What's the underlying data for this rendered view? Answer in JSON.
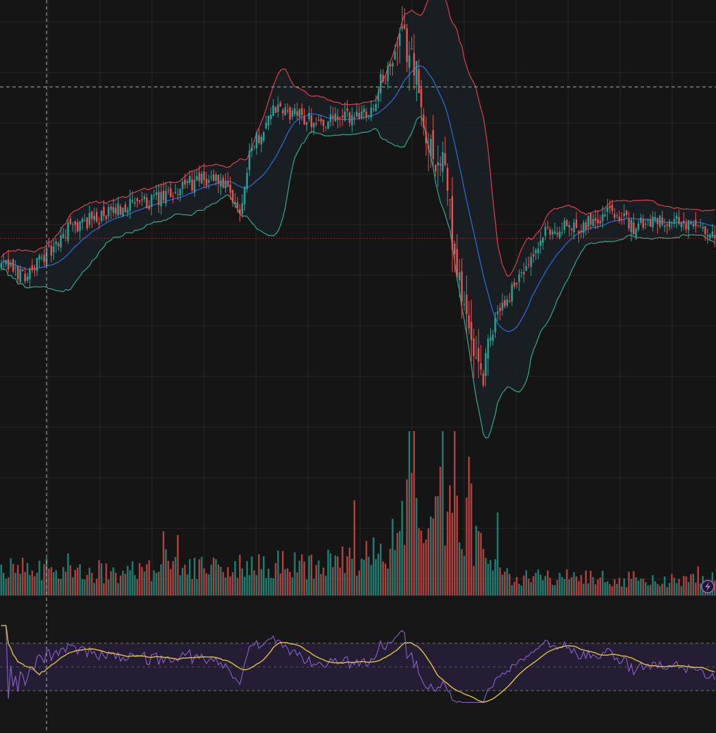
{
  "theme": {
    "background": "#151515",
    "grid": "#262626",
    "up": "#26a69a",
    "down": "#ef5350",
    "bb_upper": "#e0414f",
    "bb_lower": "#2fae8f",
    "bb_basis": "#2f6fe0",
    "bb_fill": "#1a2026",
    "volume_up": "#1f7f73",
    "volume_down": "#b3413f",
    "rsi_line": "#8a63d2",
    "rsi_ma": "#e3c542",
    "rsi_band": "#251d33",
    "crosshair": "#b0b0b0",
    "price_line": "#c94444",
    "icon": "#9c6ad6"
  },
  "chart_data": [
    {
      "type": "candlestick",
      "title": "",
      "indicators": [
        "Bollinger Bands"
      ],
      "grid": true,
      "bars": 300,
      "price_anchors": [
        [
          0,
          49
        ],
        [
          10,
          47
        ],
        [
          20,
          52
        ],
        [
          30,
          58
        ],
        [
          40,
          60
        ],
        [
          55,
          63
        ],
        [
          65,
          64
        ],
        [
          80,
          68
        ],
        [
          90,
          69
        ],
        [
          100,
          62
        ],
        [
          105,
          77
        ],
        [
          115,
          85
        ],
        [
          120,
          84
        ],
        [
          135,
          82
        ],
        [
          145,
          83
        ],
        [
          155,
          85
        ],
        [
          160,
          92
        ],
        [
          168,
          100
        ],
        [
          172,
          98
        ],
        [
          178,
          78
        ],
        [
          185,
          72
        ],
        [
          192,
          45
        ],
        [
          200,
          23
        ],
        [
          210,
          40
        ],
        [
          218,
          47
        ],
        [
          230,
          57
        ],
        [
          240,
          58
        ],
        [
          250,
          60
        ],
        [
          255,
          62
        ],
        [
          265,
          58
        ],
        [
          275,
          60
        ],
        [
          290,
          58
        ],
        [
          299,
          55
        ]
      ],
      "volume_anchors": [
        [
          0,
          0.18
        ],
        [
          50,
          0.16
        ],
        [
          100,
          0.2
        ],
        [
          140,
          0.22
        ],
        [
          160,
          0.28
        ],
        [
          170,
          0.6
        ],
        [
          178,
          0.45
        ],
        [
          190,
          0.55
        ],
        [
          200,
          0.35
        ],
        [
          215,
          0.12
        ],
        [
          299,
          0.1
        ]
      ],
      "ylim": [
        0,
        110
      ]
    },
    {
      "type": "line",
      "title": "",
      "series": [
        {
          "name": "",
          "role": "rsi"
        },
        {
          "name": "",
          "role": "rsi-ma"
        }
      ],
      "ylim": [
        0,
        100
      ],
      "band": [
        30,
        70
      ]
    }
  ],
  "widgets": {
    "indicator_icon": "lightning-icon"
  }
}
